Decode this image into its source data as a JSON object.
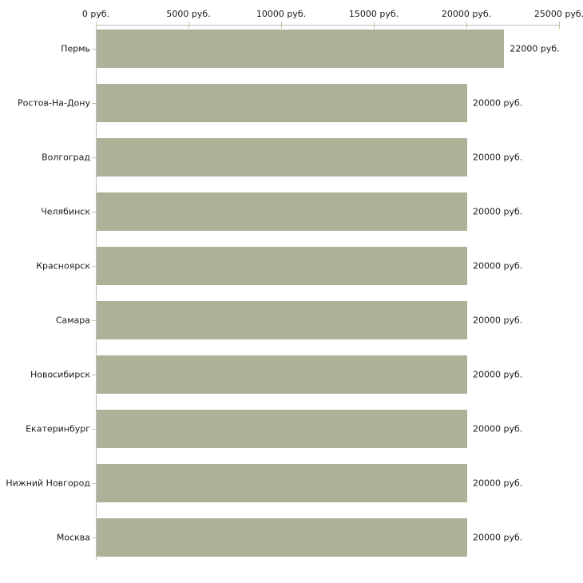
{
  "chart_data": {
    "type": "bar",
    "orientation": "horizontal",
    "title": "",
    "xlabel": "",
    "ylabel": "",
    "unit": "руб.",
    "categories": [
      "Пермь",
      "Ростов-На-Дону",
      "Волгоград",
      "Челябинск",
      "Красноярск",
      "Самара",
      "Новосибирск",
      "Екатеринбург",
      "Нижний Новгород",
      "Москва"
    ],
    "values": [
      22000,
      20000,
      20000,
      20000,
      20000,
      20000,
      20000,
      20000,
      20000,
      20000
    ],
    "value_labels": [
      "22000 руб.",
      "20000 руб.",
      "20000 руб.",
      "20000 руб.",
      "20000 руб.",
      "20000 руб.",
      "20000 руб.",
      "20000 руб.",
      "20000 руб.",
      "20000 руб."
    ],
    "x_ticks": [
      0,
      5000,
      10000,
      15000,
      20000,
      25000
    ],
    "x_tick_labels": [
      "0 руб.",
      "5000 руб.",
      "10000 руб.",
      "15000 руб.",
      "20000 руб.",
      "25000 руб."
    ],
    "xlim": [
      0,
      25000
    ],
    "grid": false,
    "legend": null,
    "colors": {
      "bar": "#acb298",
      "axis": "#bebebe",
      "tick": "#c9c49c",
      "text": "#1a1a1a",
      "background": "#ffffff"
    }
  }
}
